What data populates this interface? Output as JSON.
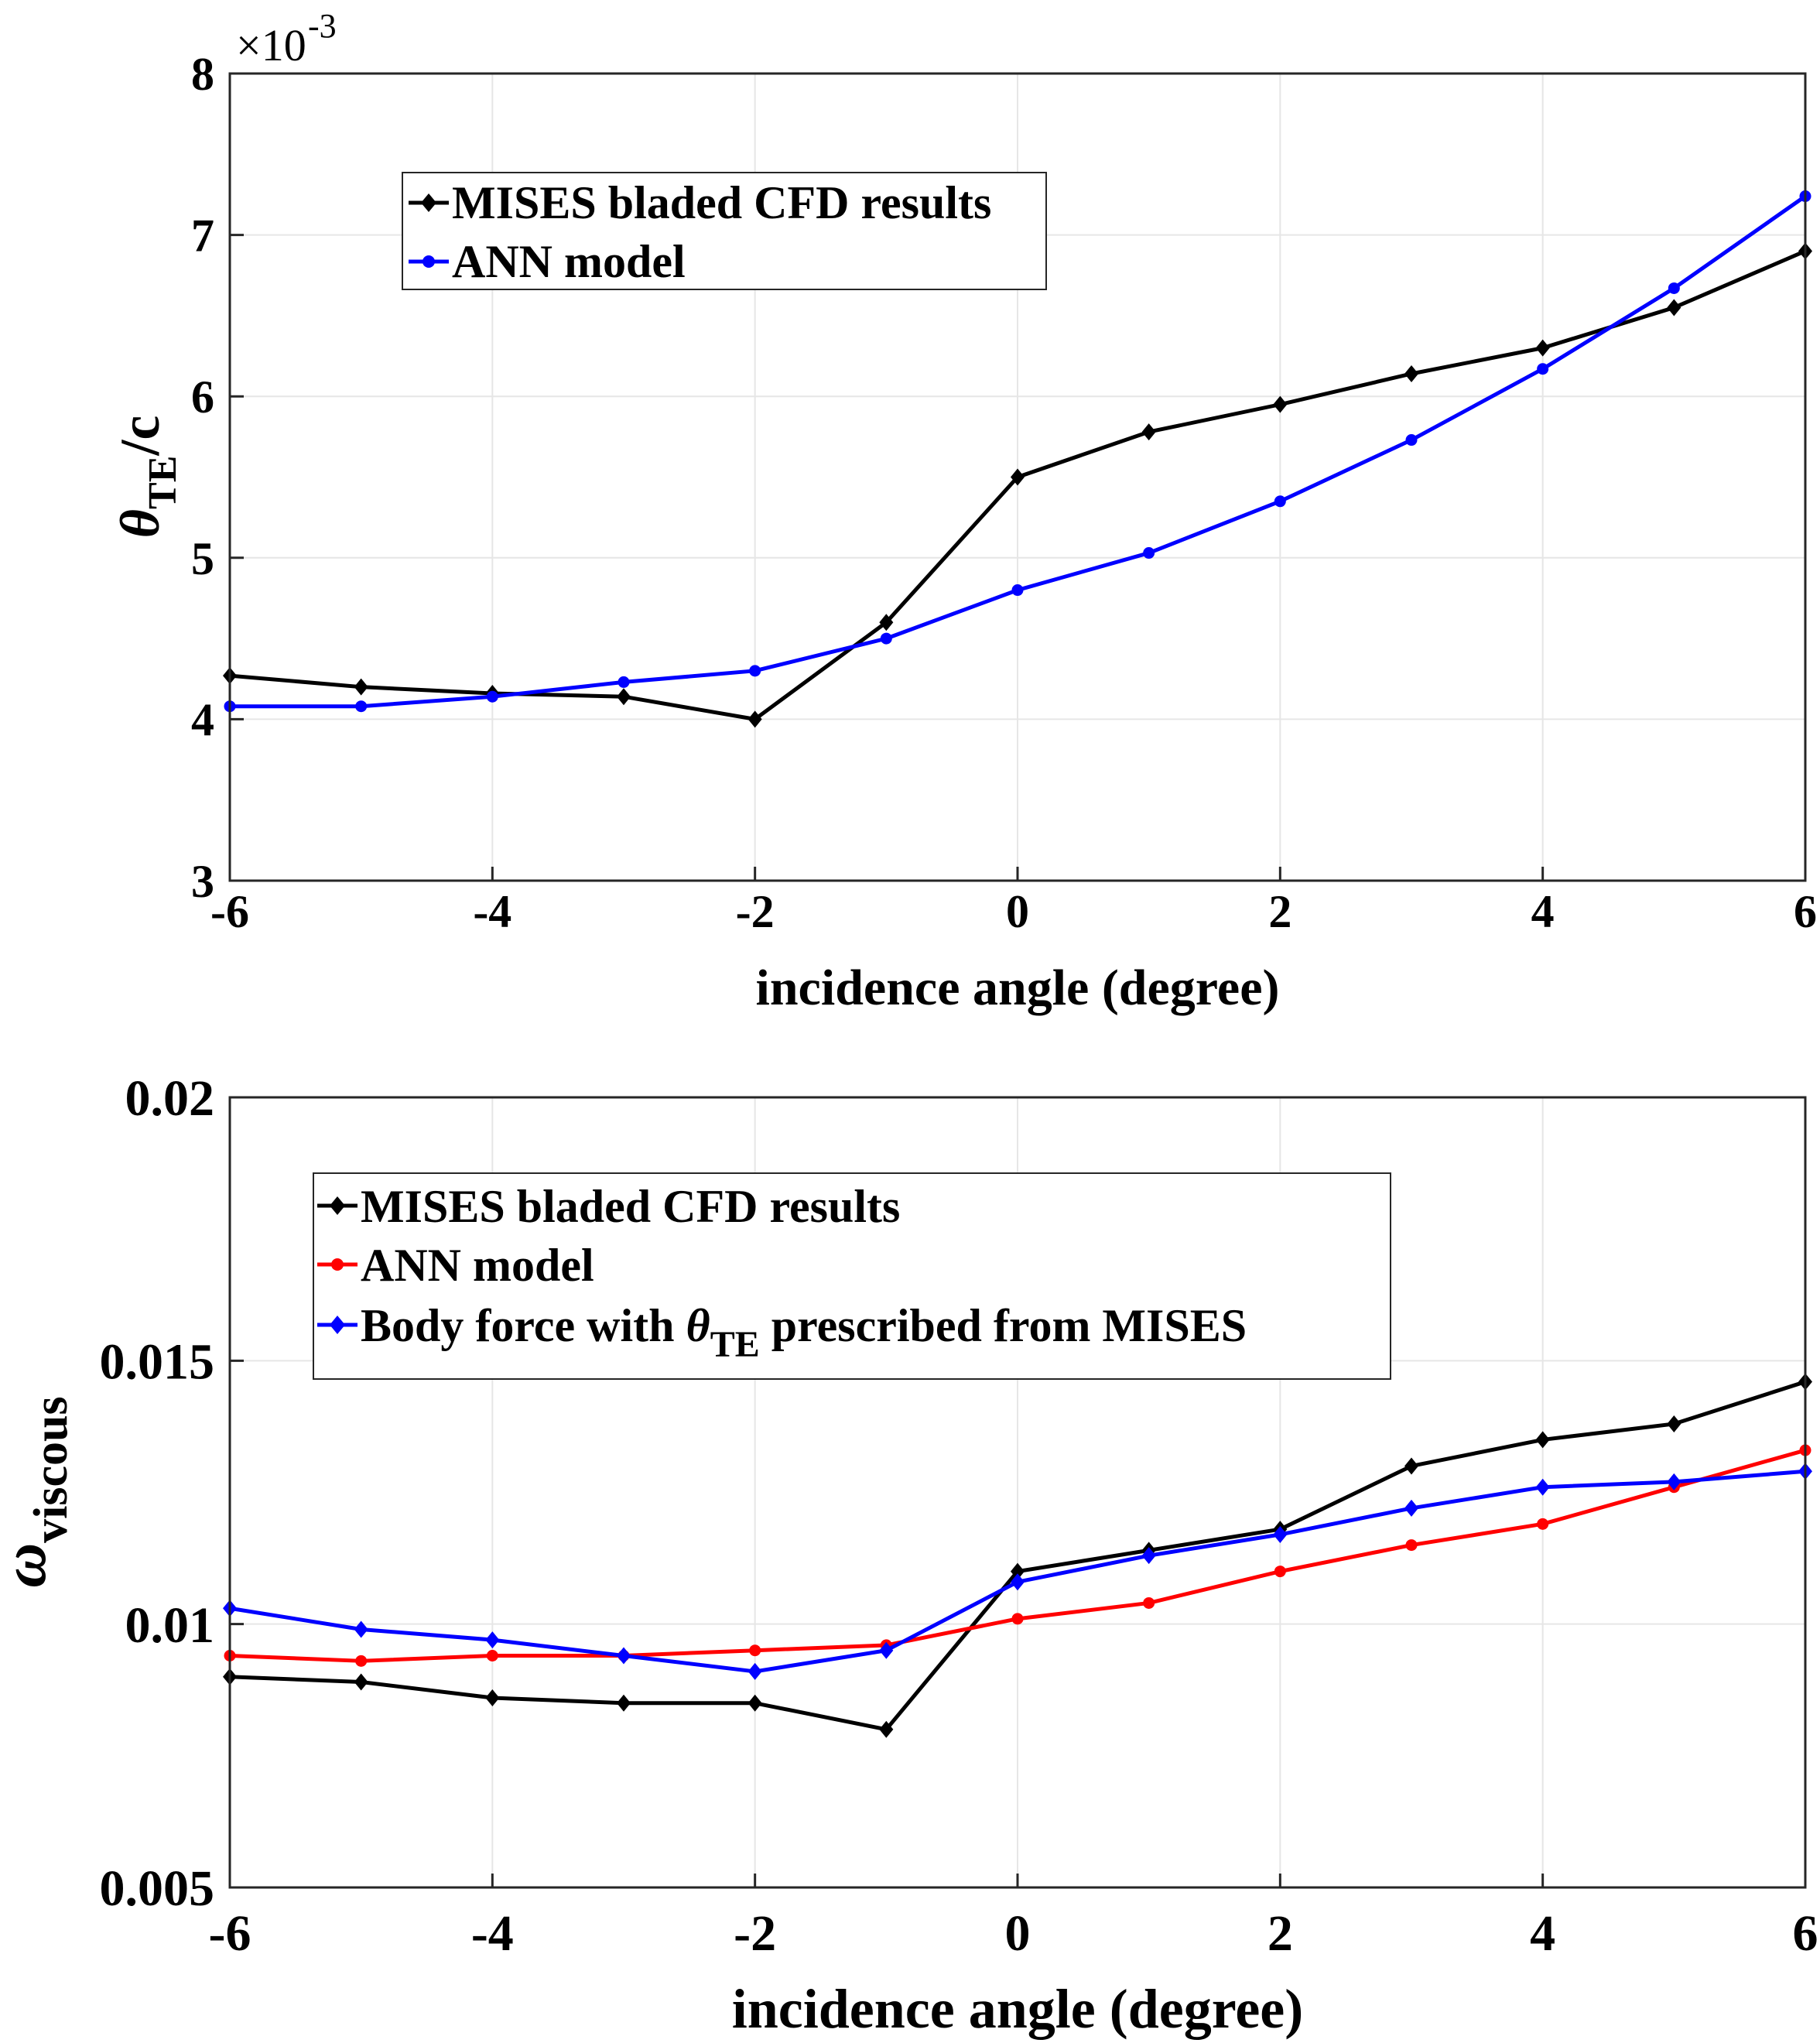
{
  "chart_data": [
    {
      "type": "line",
      "x": [
        -6,
        -5,
        -4,
        -3,
        -2,
        -1,
        0,
        1,
        2,
        3,
        4,
        5,
        6
      ],
      "xlim": [
        -6,
        6
      ],
      "xticks": [
        "-6",
        "-4",
        "-2",
        "0",
        "2",
        "4",
        "6"
      ],
      "ylim": [
        3,
        8
      ],
      "yticks": [
        "3",
        "4",
        "5",
        "6",
        "7",
        "8"
      ],
      "y_multiplier": "×10",
      "y_exponent": "-3",
      "xlabel": "incidence angle (degree)",
      "ylabel": {
        "symbol": "θ",
        "subscript": "TE",
        "suffix": "/c"
      },
      "grid": true,
      "legend_position": "upper-left",
      "series": [
        {
          "name": "MISES bladed CFD results",
          "color": "#000000",
          "marker": "diamond",
          "values": [
            4.27,
            4.2,
            4.16,
            4.14,
            4.0,
            4.6,
            5.5,
            5.78,
            5.95,
            6.14,
            6.3,
            6.55,
            6.9
          ]
        },
        {
          "name": "ANN model",
          "color": "#0000ff",
          "marker": "circle",
          "values": [
            4.08,
            4.08,
            4.14,
            4.23,
            4.3,
            4.5,
            4.8,
            5.03,
            5.35,
            5.73,
            6.17,
            6.67,
            7.24
          ]
        }
      ]
    },
    {
      "type": "line",
      "x": [
        -6,
        -5,
        -4,
        -3,
        -2,
        -1,
        0,
        1,
        2,
        3,
        4,
        5,
        6
      ],
      "xlim": [
        -6,
        6
      ],
      "xticks": [
        "-6",
        "-4",
        "-2",
        "0",
        "2",
        "4",
        "6"
      ],
      "ylim": [
        0.005,
        0.02
      ],
      "yticks": [
        "0.005",
        "0.01",
        "0.015",
        "0.02"
      ],
      "xlabel": "incidence angle (degree)",
      "ylabel": {
        "symbol": "ω",
        "subscript": "viscous"
      },
      "grid": true,
      "legend_position": "upper-left",
      "series": [
        {
          "name": "MISES bladed CFD results",
          "color": "#000000",
          "marker": "diamond",
          "values": [
            0.009,
            0.0089,
            0.0086,
            0.0085,
            0.0085,
            0.008,
            0.011,
            0.0114,
            0.0118,
            0.013,
            0.0135,
            0.0138,
            0.0146
          ]
        },
        {
          "name": "ANN model",
          "color": "#ff0000",
          "marker": "circle",
          "values": [
            0.0094,
            0.0093,
            0.0094,
            0.0094,
            0.0095,
            0.0096,
            0.0101,
            0.0104,
            0.011,
            0.0115,
            0.0119,
            0.0126,
            0.0133
          ]
        },
        {
          "name_parts": [
            "Body force with ",
            "θ",
            "TE",
            " prescribed from MISES"
          ],
          "color": "#0000ff",
          "marker": "diamond",
          "values": [
            0.0103,
            0.0099,
            0.0097,
            0.0094,
            0.0091,
            0.0095,
            0.0108,
            0.0113,
            0.0117,
            0.0122,
            0.0126,
            0.0127,
            0.0129
          ]
        }
      ]
    }
  ]
}
